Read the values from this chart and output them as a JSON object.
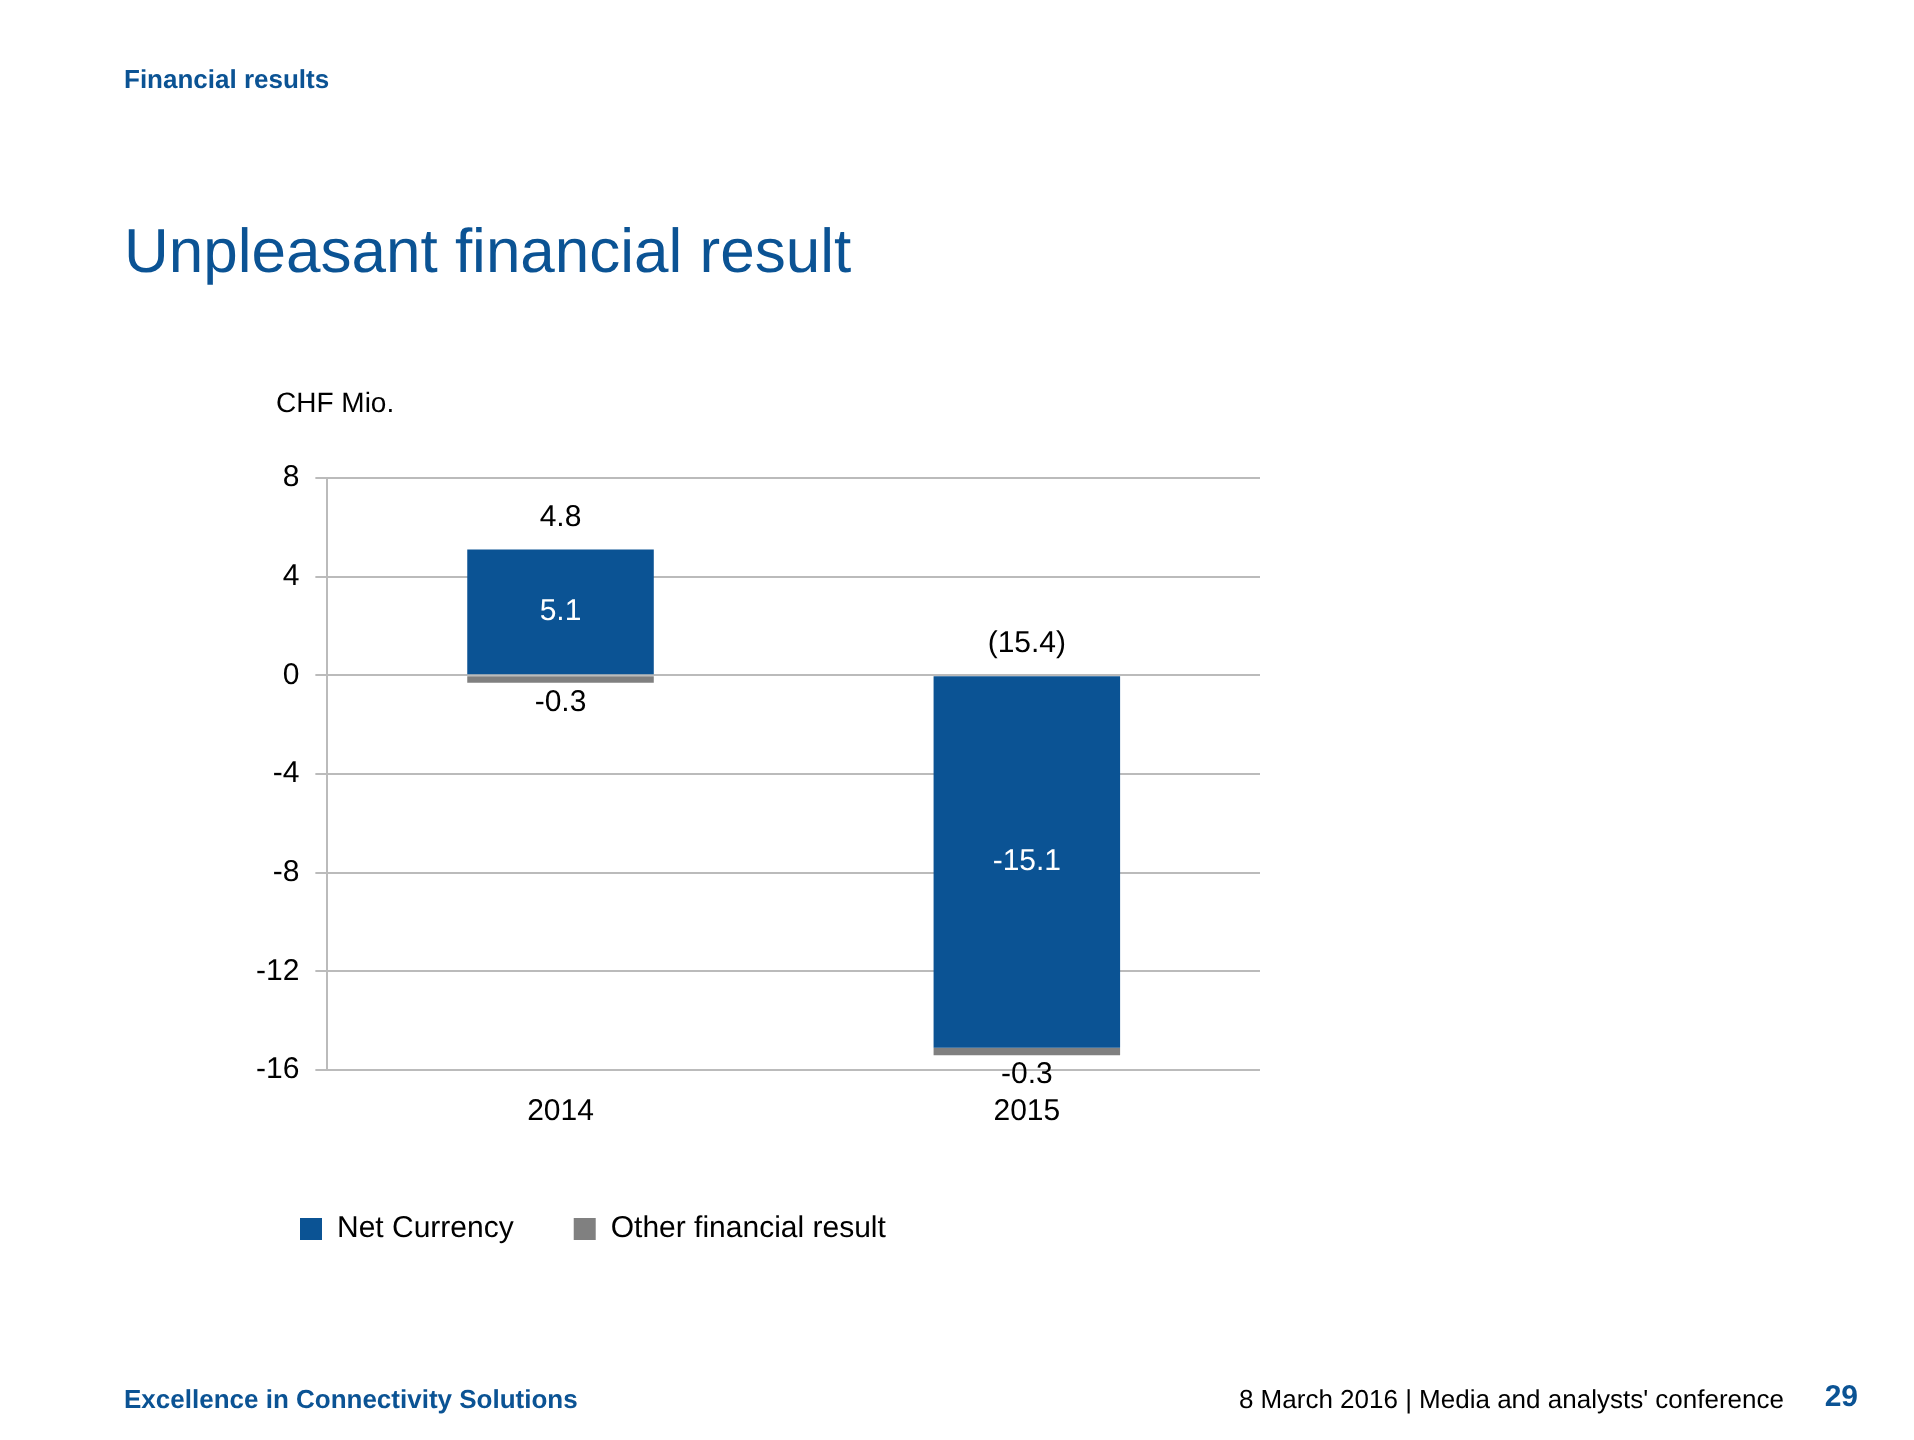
{
  "chart_data": {
    "type": "bar",
    "title": "Unpleasant financial result",
    "ylabel": "CHF Mio.",
    "categories": [
      "2014",
      "2015"
    ],
    "stacked": true,
    "series": [
      {
        "name": "Net Currency",
        "color": "#0b5394",
        "values": [
          5.1,
          -15.1
        ]
      },
      {
        "name": "Other financial result",
        "color": "#808080",
        "values": [
          -0.3,
          -0.3
        ]
      }
    ],
    "ylim": [
      -16,
      8
    ],
    "yticks": [
      -16,
      -12,
      -8,
      -4,
      0,
      4,
      8
    ],
    "grid": "y",
    "legend": "bottom",
    "data_labels": true,
    "totals": [
      "4.8",
      "(15.4)"
    ],
    "annotations": [
      "Financial results",
      "Excellence in Connectivity Solutions",
      "8 March 2016  |  Media and analysts' conference",
      "29"
    ]
  }
}
